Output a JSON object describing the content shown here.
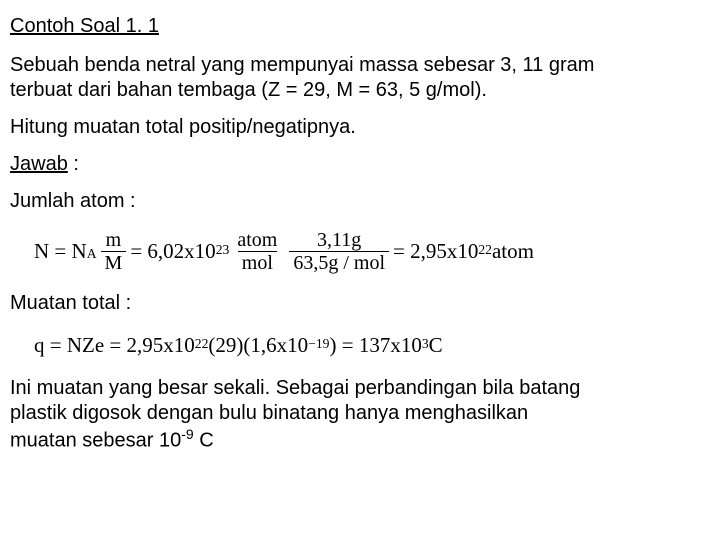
{
  "title": "Contoh Soal 1. 1",
  "problem_line1": "Sebuah benda netral yang mempunyai massa sebesar 3, 11 gram",
  "problem_line2": "terbuat dari bahan tembaga (Z = 29, M = 63, 5 g/mol).",
  "problem_line3": "Hitung muatan total positip/negatipnya.",
  "answer_label": "Jawab",
  "colon": " :",
  "atom_label": "Jumlah atom :",
  "eq1": {
    "lhs": "N = N",
    "Asub": "A",
    "f1_num": "m",
    "f1_den": "M",
    "eq1": " = 6,02x10",
    "p23": "23",
    "f2_num": "atom",
    "f2_den": "mol",
    "f3_num": "3,11g",
    "f3_den": "63,5g / mol",
    "eq2": " = 2,95x10",
    "p22": "22",
    "tail": " atom"
  },
  "charge_label": "Muatan total :",
  "eq2": {
    "a": "q = NZe = 2,95x10",
    "p22": "22",
    "b": "(29)(1,6x10",
    "pm19": "−19",
    "c": ") = 137x10",
    "p3": "3",
    "d": "C"
  },
  "concl1": "Ini muatan yang besar sekali. Sebagai perbandingan bila batang",
  "concl2": "plastik digosok dengan bulu binatang hanya menghasilkan",
  "concl3a": "muatan sebesar 10",
  "concl3exp": "-9",
  "concl3b": " C"
}
